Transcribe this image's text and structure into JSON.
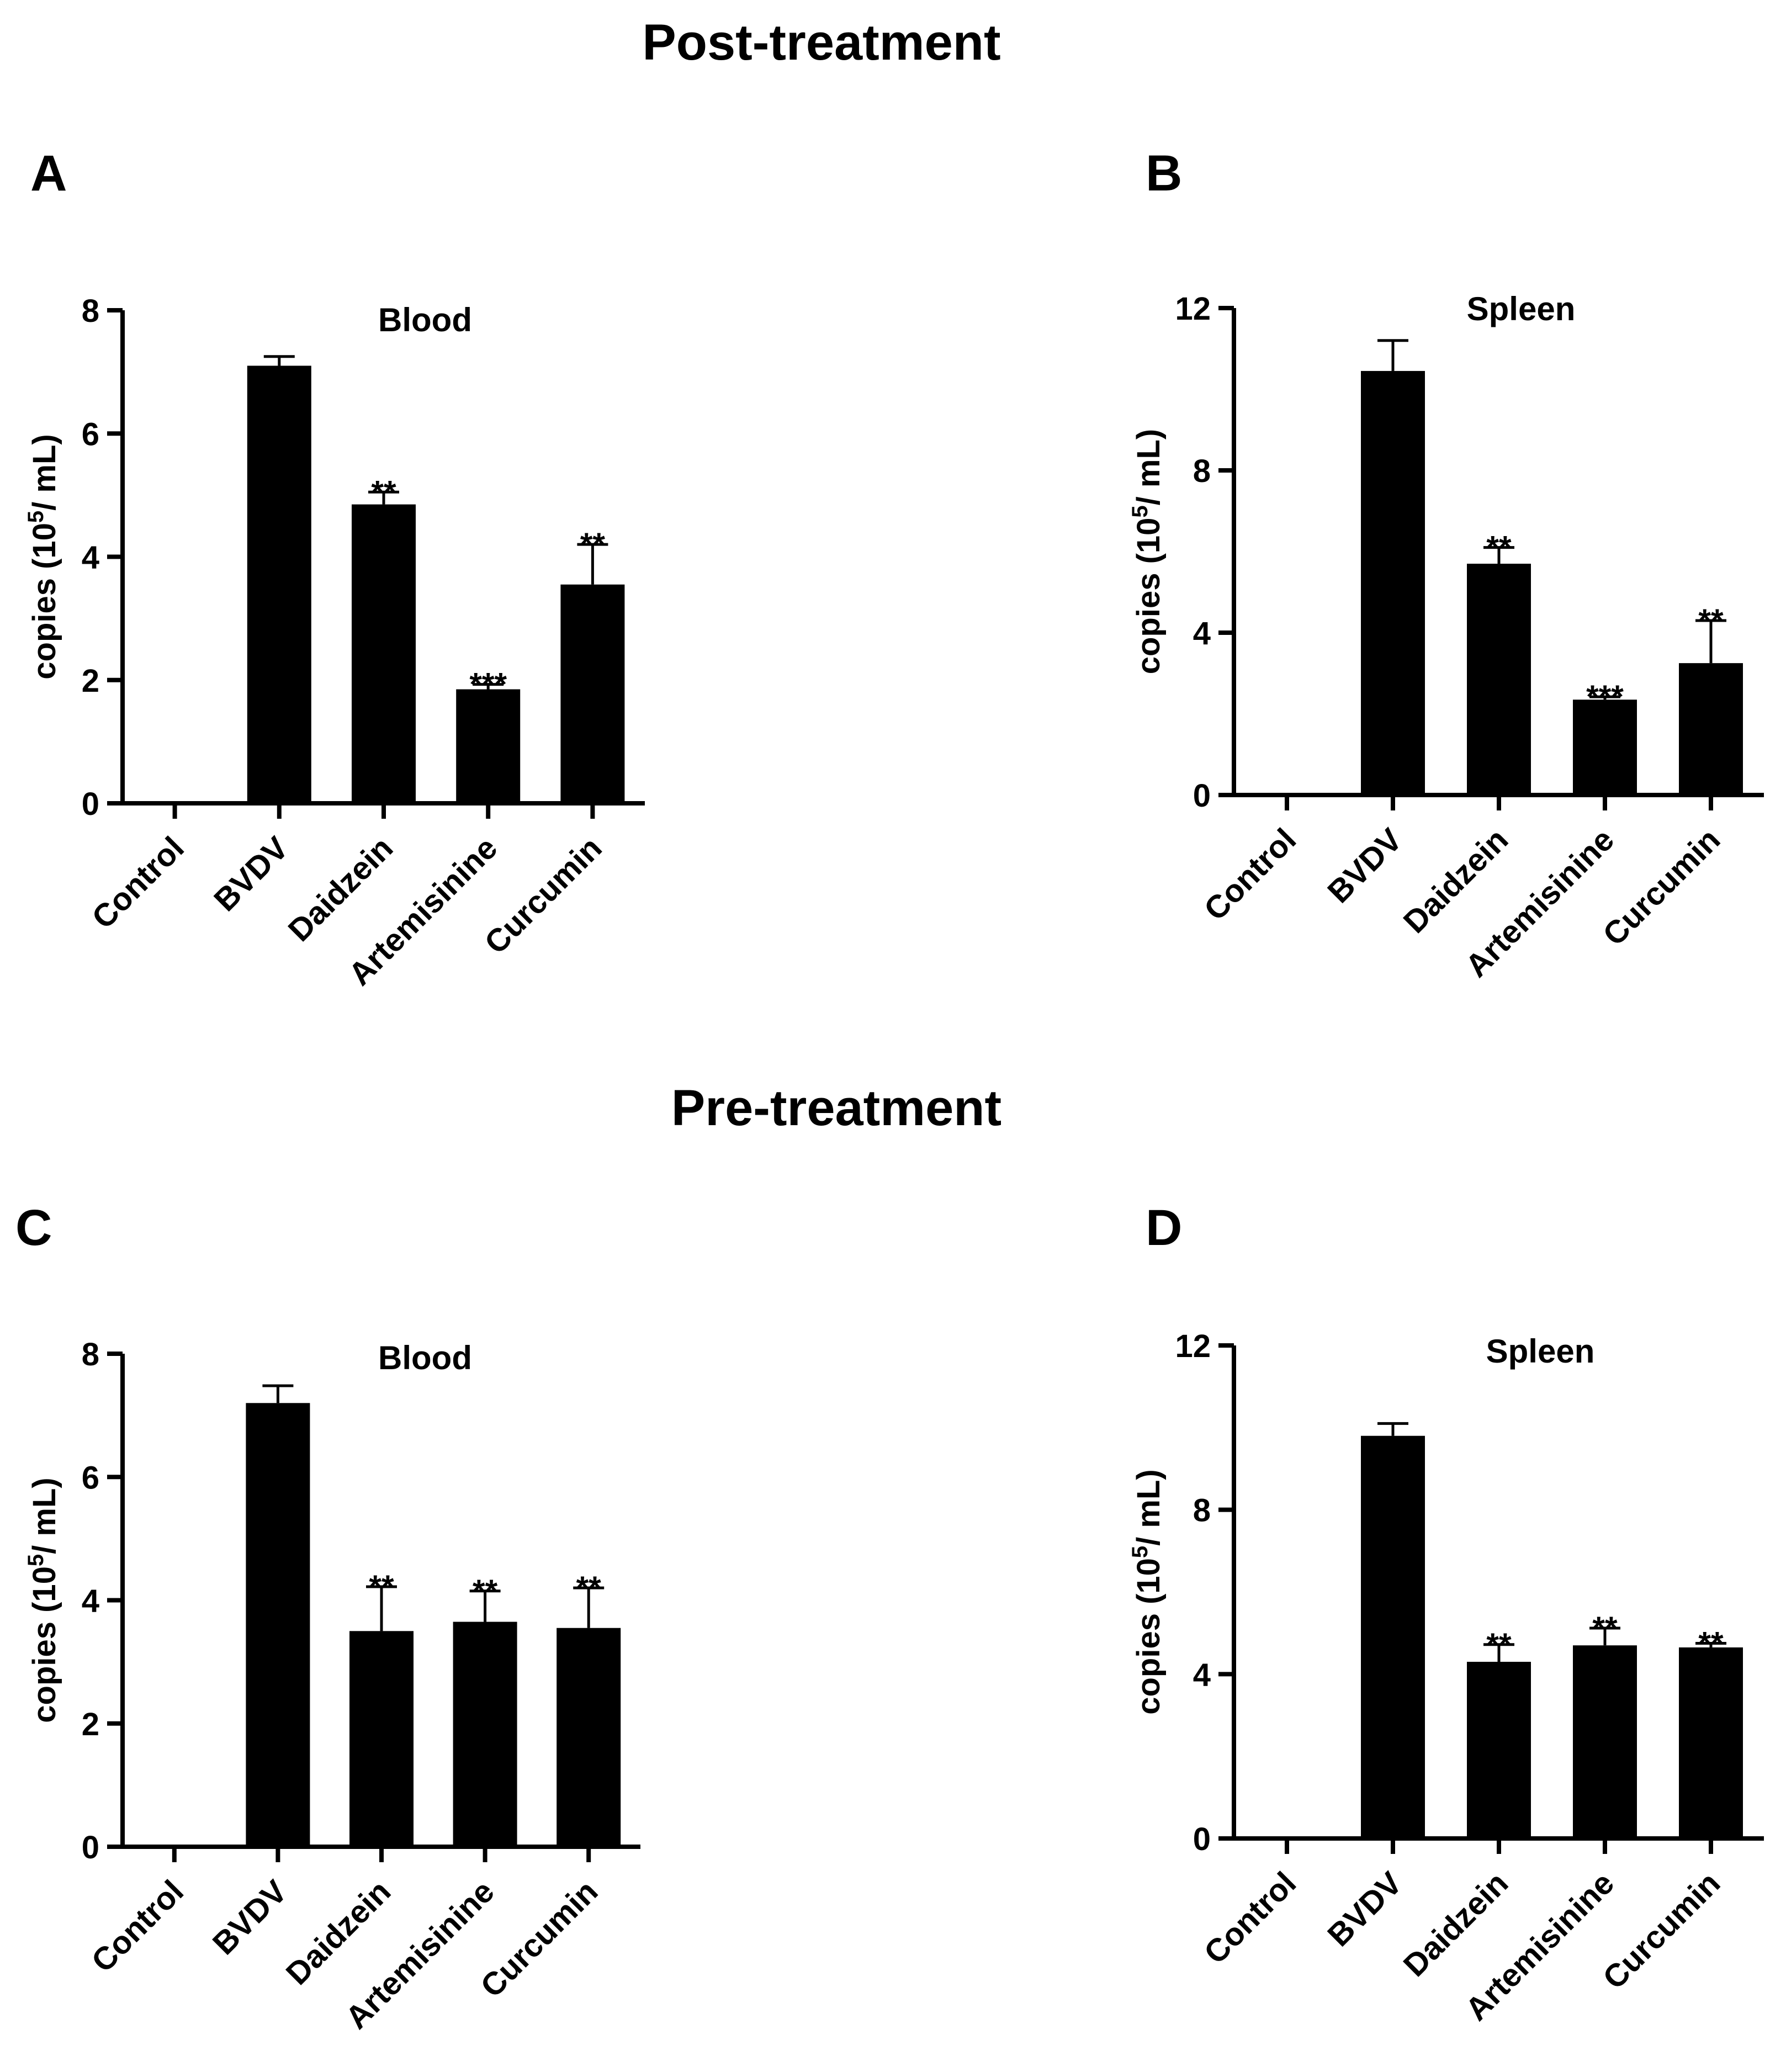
{
  "figure": {
    "section_titles": [
      "Post-treatment",
      "Pre-treatment"
    ]
  },
  "chart_data": [
    {
      "panel": "A",
      "type": "bar",
      "title": "Blood",
      "ylabel": "copies (10",
      "ylabel_sup": "5",
      "ylabel_tail": "/ mL)",
      "categories": [
        "Control",
        "BVDV",
        "Daidzein",
        "Artemisinine",
        "Curcumin"
      ],
      "values": [
        0,
        7.1,
        4.85,
        1.85,
        3.55
      ],
      "errors": [
        0,
        0.15,
        0.2,
        0.08,
        0.65
      ],
      "significance": [
        "",
        "",
        "**",
        "***",
        "**"
      ],
      "ylim": [
        0,
        8
      ],
      "yticks": [
        0,
        2,
        4,
        6,
        8
      ]
    },
    {
      "panel": "B",
      "type": "bar",
      "title": "Spleen",
      "ylabel": "copies (10",
      "ylabel_sup": "5",
      "ylabel_tail": "/ mL)",
      "categories": [
        "Control",
        "BVDV",
        "Daidzein",
        "Artemisinine",
        "Curcumin"
      ],
      "values": [
        0,
        10.45,
        5.7,
        2.35,
        3.25
      ],
      "errors": [
        0,
        0.75,
        0.4,
        0.07,
        1.05
      ],
      "significance": [
        "",
        "",
        "**",
        "***",
        "**"
      ],
      "ylim": [
        0,
        12
      ],
      "yticks": [
        0,
        4,
        8,
        12
      ]
    },
    {
      "panel": "C",
      "type": "bar",
      "title": "Blood",
      "ylabel": "copies (10",
      "ylabel_sup": "5",
      "ylabel_tail": "/ mL)",
      "categories": [
        "Control",
        "BVDV",
        "Daidzein",
        "Artemisinine",
        "Curcumin"
      ],
      "values": [
        0,
        7.2,
        3.5,
        3.65,
        3.55
      ],
      "errors": [
        0,
        0.28,
        0.72,
        0.5,
        0.65
      ],
      "significance": [
        "",
        "",
        "**",
        "**",
        "**"
      ],
      "ylim": [
        0,
        8
      ],
      "yticks": [
        0,
        2,
        4,
        6,
        8
      ]
    },
    {
      "panel": "D",
      "type": "bar",
      "title": "Spleen",
      "ylabel": "copies (10",
      "ylabel_sup": "5",
      "ylabel_tail": "/ mL)",
      "categories": [
        "Control",
        "BVDV",
        "Daidzein",
        "Artemisinine",
        "Curcumin"
      ],
      "values": [
        0,
        9.8,
        4.3,
        4.7,
        4.65
      ],
      "errors": [
        0,
        0.3,
        0.42,
        0.42,
        0.1
      ],
      "significance": [
        "",
        "",
        "**",
        "**",
        "**"
      ],
      "ylim": [
        0,
        12
      ],
      "yticks": [
        0,
        4,
        8,
        12
      ]
    }
  ]
}
